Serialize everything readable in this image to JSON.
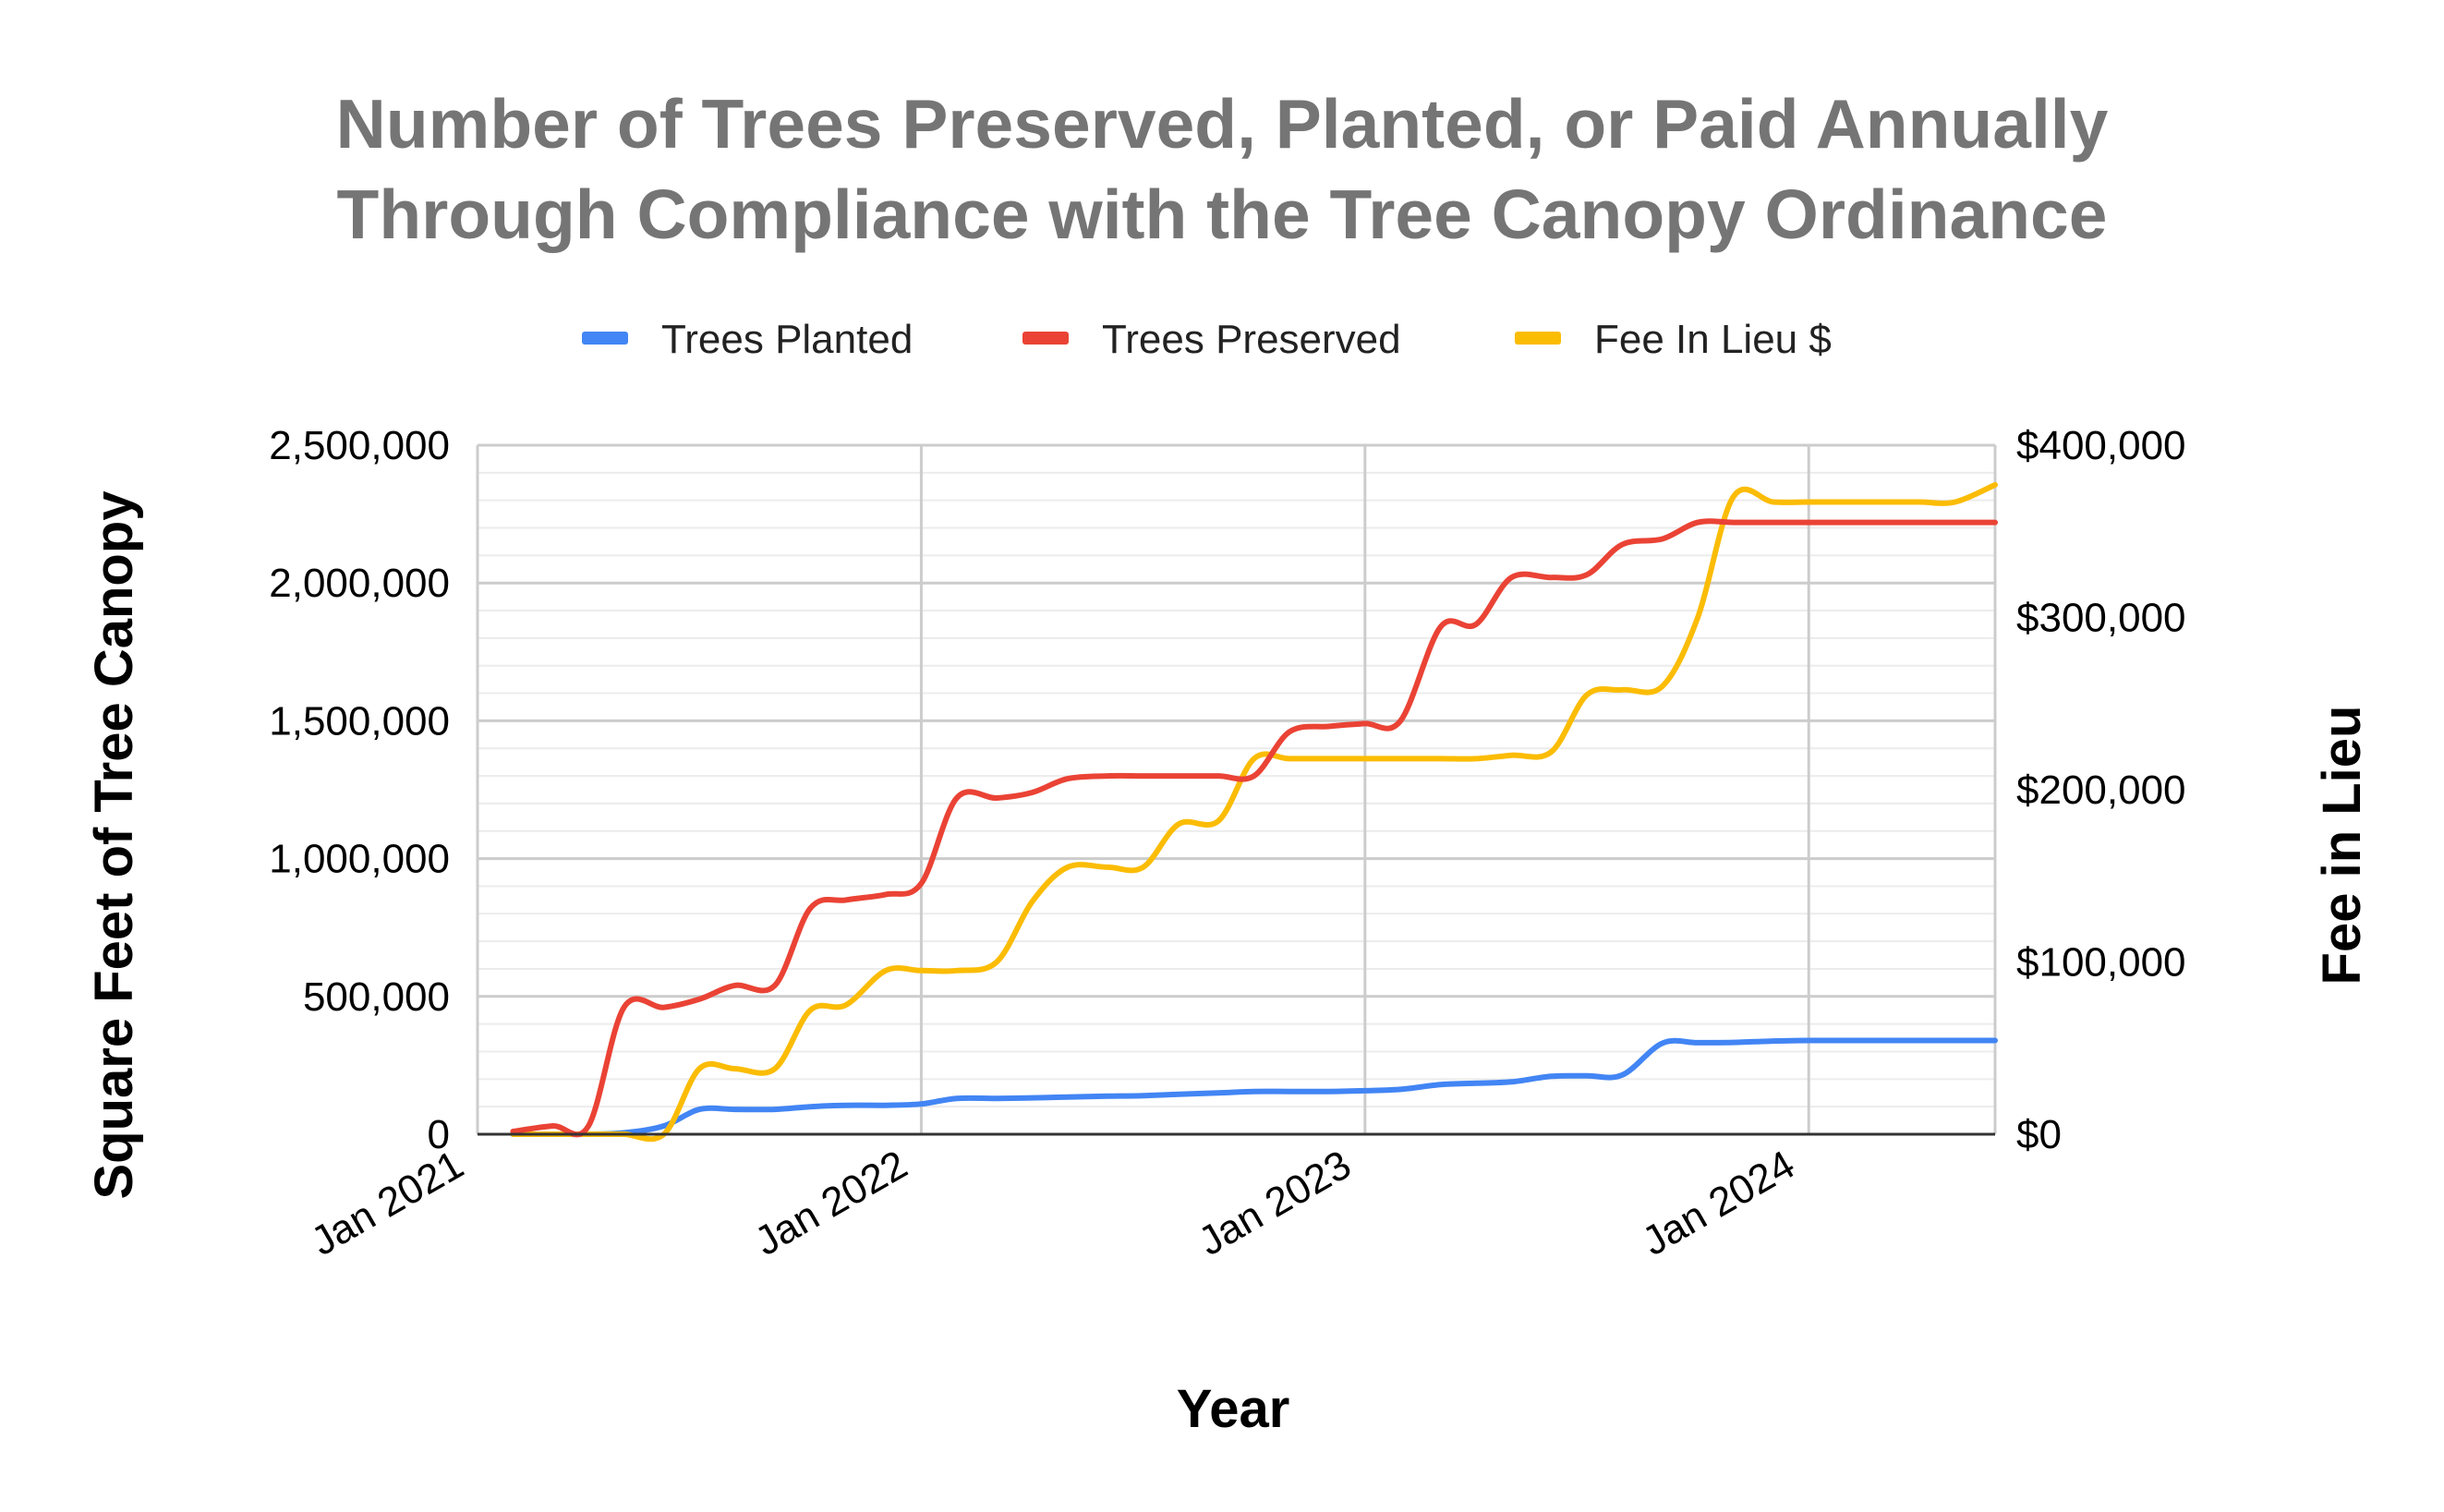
{
  "chart_data": {
    "type": "line",
    "title": [
      "Number of Trees Preserved, Planted, or Paid Annually",
      "Through Compliance with the Tree Canopy Ordinance"
    ],
    "xlabel": "Year",
    "ylabel": "Square Feet of Tree Canopy",
    "y2label": "Fee in Lieu",
    "x_ticks": [
      {
        "label": "Jan 2021",
        "value": 2021.0
      },
      {
        "label": "Jan 2022",
        "value": 2022.0
      },
      {
        "label": "Jan 2023",
        "value": 2023.0
      },
      {
        "label": "Jan 2024",
        "value": 2024.0
      }
    ],
    "xlim": [
      2021.0,
      2024.42
    ],
    "ylim": [
      0,
      2500000
    ],
    "y_ticks": [
      "0",
      "500,000",
      "1,000,000",
      "1,500,000",
      "2,000,000",
      "2,500,000"
    ],
    "y2lim": [
      0,
      400000
    ],
    "y2_ticks": [
      "$0",
      "$100,000",
      "$200,000",
      "$300,000",
      "$400,000"
    ],
    "grid": true,
    "legend_position": "top",
    "series": [
      {
        "name": "Trees Planted",
        "color": "#4285F4",
        "axis": "left",
        "x": [
          2021.08,
          2021.17,
          2021.25,
          2021.33,
          2021.42,
          2021.5,
          2021.58,
          2021.67,
          2021.75,
          2021.83,
          2021.92,
          2022.0,
          2022.08,
          2022.17,
          2022.25,
          2022.33,
          2022.42,
          2022.5,
          2022.58,
          2022.67,
          2022.75,
          2022.83,
          2022.92,
          2023.0,
          2023.08,
          2023.17,
          2023.25,
          2023.33,
          2023.42,
          2023.5,
          2023.58,
          2023.67,
          2023.75,
          2023.83,
          2023.92,
          2024.0,
          2024.08,
          2024.17,
          2024.25,
          2024.33,
          2024.42
        ],
        "values": [
          0,
          0,
          0,
          5000,
          30000,
          90000,
          90000,
          90000,
          100000,
          105000,
          105000,
          110000,
          130000,
          130000,
          132000,
          135000,
          138000,
          140000,
          145000,
          150000,
          155000,
          155000,
          155000,
          158000,
          163000,
          180000,
          185000,
          190000,
          210000,
          212000,
          215000,
          330000,
          332000,
          333000,
          338000,
          340000,
          340000,
          340000,
          340000,
          340000,
          340000
        ]
      },
      {
        "name": "Trees Preserved",
        "color": "#EA4335",
        "axis": "left",
        "x": [
          2021.08,
          2021.17,
          2021.25,
          2021.33,
          2021.42,
          2021.5,
          2021.58,
          2021.67,
          2021.75,
          2021.83,
          2021.92,
          2022.0,
          2022.08,
          2022.17,
          2022.25,
          2022.33,
          2022.42,
          2022.5,
          2022.58,
          2022.67,
          2022.75,
          2022.83,
          2022.92,
          2023.0,
          2023.08,
          2023.17,
          2023.25,
          2023.33,
          2023.42,
          2023.5,
          2023.58,
          2023.67,
          2023.75,
          2023.83,
          2023.92,
          2024.0,
          2024.08,
          2024.17,
          2024.25,
          2024.33,
          2024.42
        ],
        "values": [
          10000,
          30000,
          30000,
          460000,
          460000,
          490000,
          540000,
          540000,
          820000,
          850000,
          870000,
          910000,
          1220000,
          1220000,
          1240000,
          1290000,
          1300000,
          1300000,
          1300000,
          1300000,
          1300000,
          1460000,
          1480000,
          1490000,
          1500000,
          1840000,
          1850000,
          2020000,
          2020000,
          2030000,
          2140000,
          2160000,
          2220000,
          2220000,
          2220000,
          2220000,
          2220000,
          2220000,
          2220000,
          2220000,
          2220000
        ]
      },
      {
        "name": "Fee In Lieu $",
        "color": "#FBBC04",
        "axis": "right",
        "x": [
          2021.08,
          2021.17,
          2021.25,
          2021.33,
          2021.42,
          2021.5,
          2021.58,
          2021.67,
          2021.75,
          2021.83,
          2021.92,
          2022.0,
          2022.08,
          2022.17,
          2022.25,
          2022.33,
          2022.42,
          2022.5,
          2022.58,
          2022.67,
          2022.75,
          2022.83,
          2022.92,
          2023.0,
          2023.08,
          2023.17,
          2023.25,
          2023.33,
          2023.42,
          2023.5,
          2023.58,
          2023.67,
          2023.75,
          2023.83,
          2023.92,
          2024.0,
          2024.08,
          2024.17,
          2024.25,
          2024.33,
          2024.42
        ],
        "values": [
          0,
          0,
          0,
          0,
          0,
          38000,
          38000,
          38000,
          72000,
          75000,
          95000,
          95000,
          95000,
          100000,
          135000,
          155000,
          155000,
          155000,
          180000,
          182000,
          218000,
          218000,
          218000,
          218000,
          218000,
          218000,
          218000,
          220000,
          222000,
          255000,
          258000,
          260000,
          300000,
          370000,
          367000,
          367000,
          367000,
          367000,
          367000,
          367000,
          377000
        ]
      }
    ]
  }
}
